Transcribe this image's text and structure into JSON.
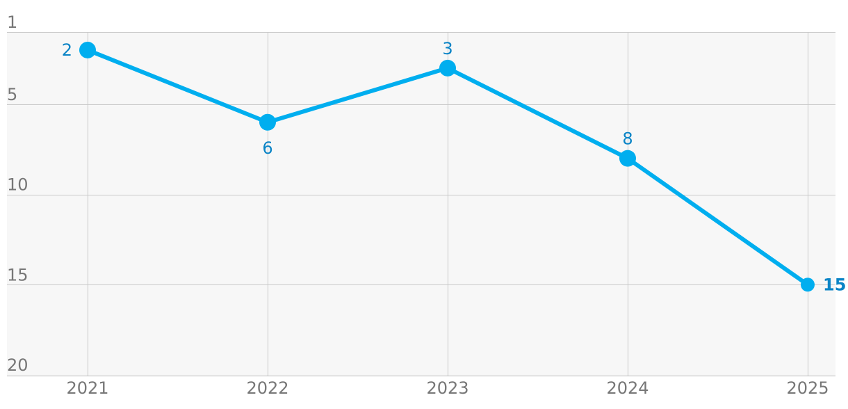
{
  "chart_data": {
    "type": "line",
    "title": "",
    "xlabel": "",
    "ylabel": "",
    "y_inverted": true,
    "ylim": [
      1,
      20
    ],
    "y_ticks": [
      1,
      5,
      10,
      15,
      20
    ],
    "categories": [
      "2021",
      "2022",
      "2023",
      "2024",
      "2025"
    ],
    "series": [
      {
        "values": [
          2,
          6,
          3,
          8,
          15
        ]
      }
    ],
    "data_labels": [
      "2",
      "6",
      "3",
      "8",
      "15"
    ],
    "grid": true,
    "legend": "none",
    "colors": {
      "line": "#00aeef",
      "label": "#0a84c6",
      "plot_bg": "#f7f7f7",
      "grid": "#c8c8c8",
      "tick": "#777777"
    }
  }
}
